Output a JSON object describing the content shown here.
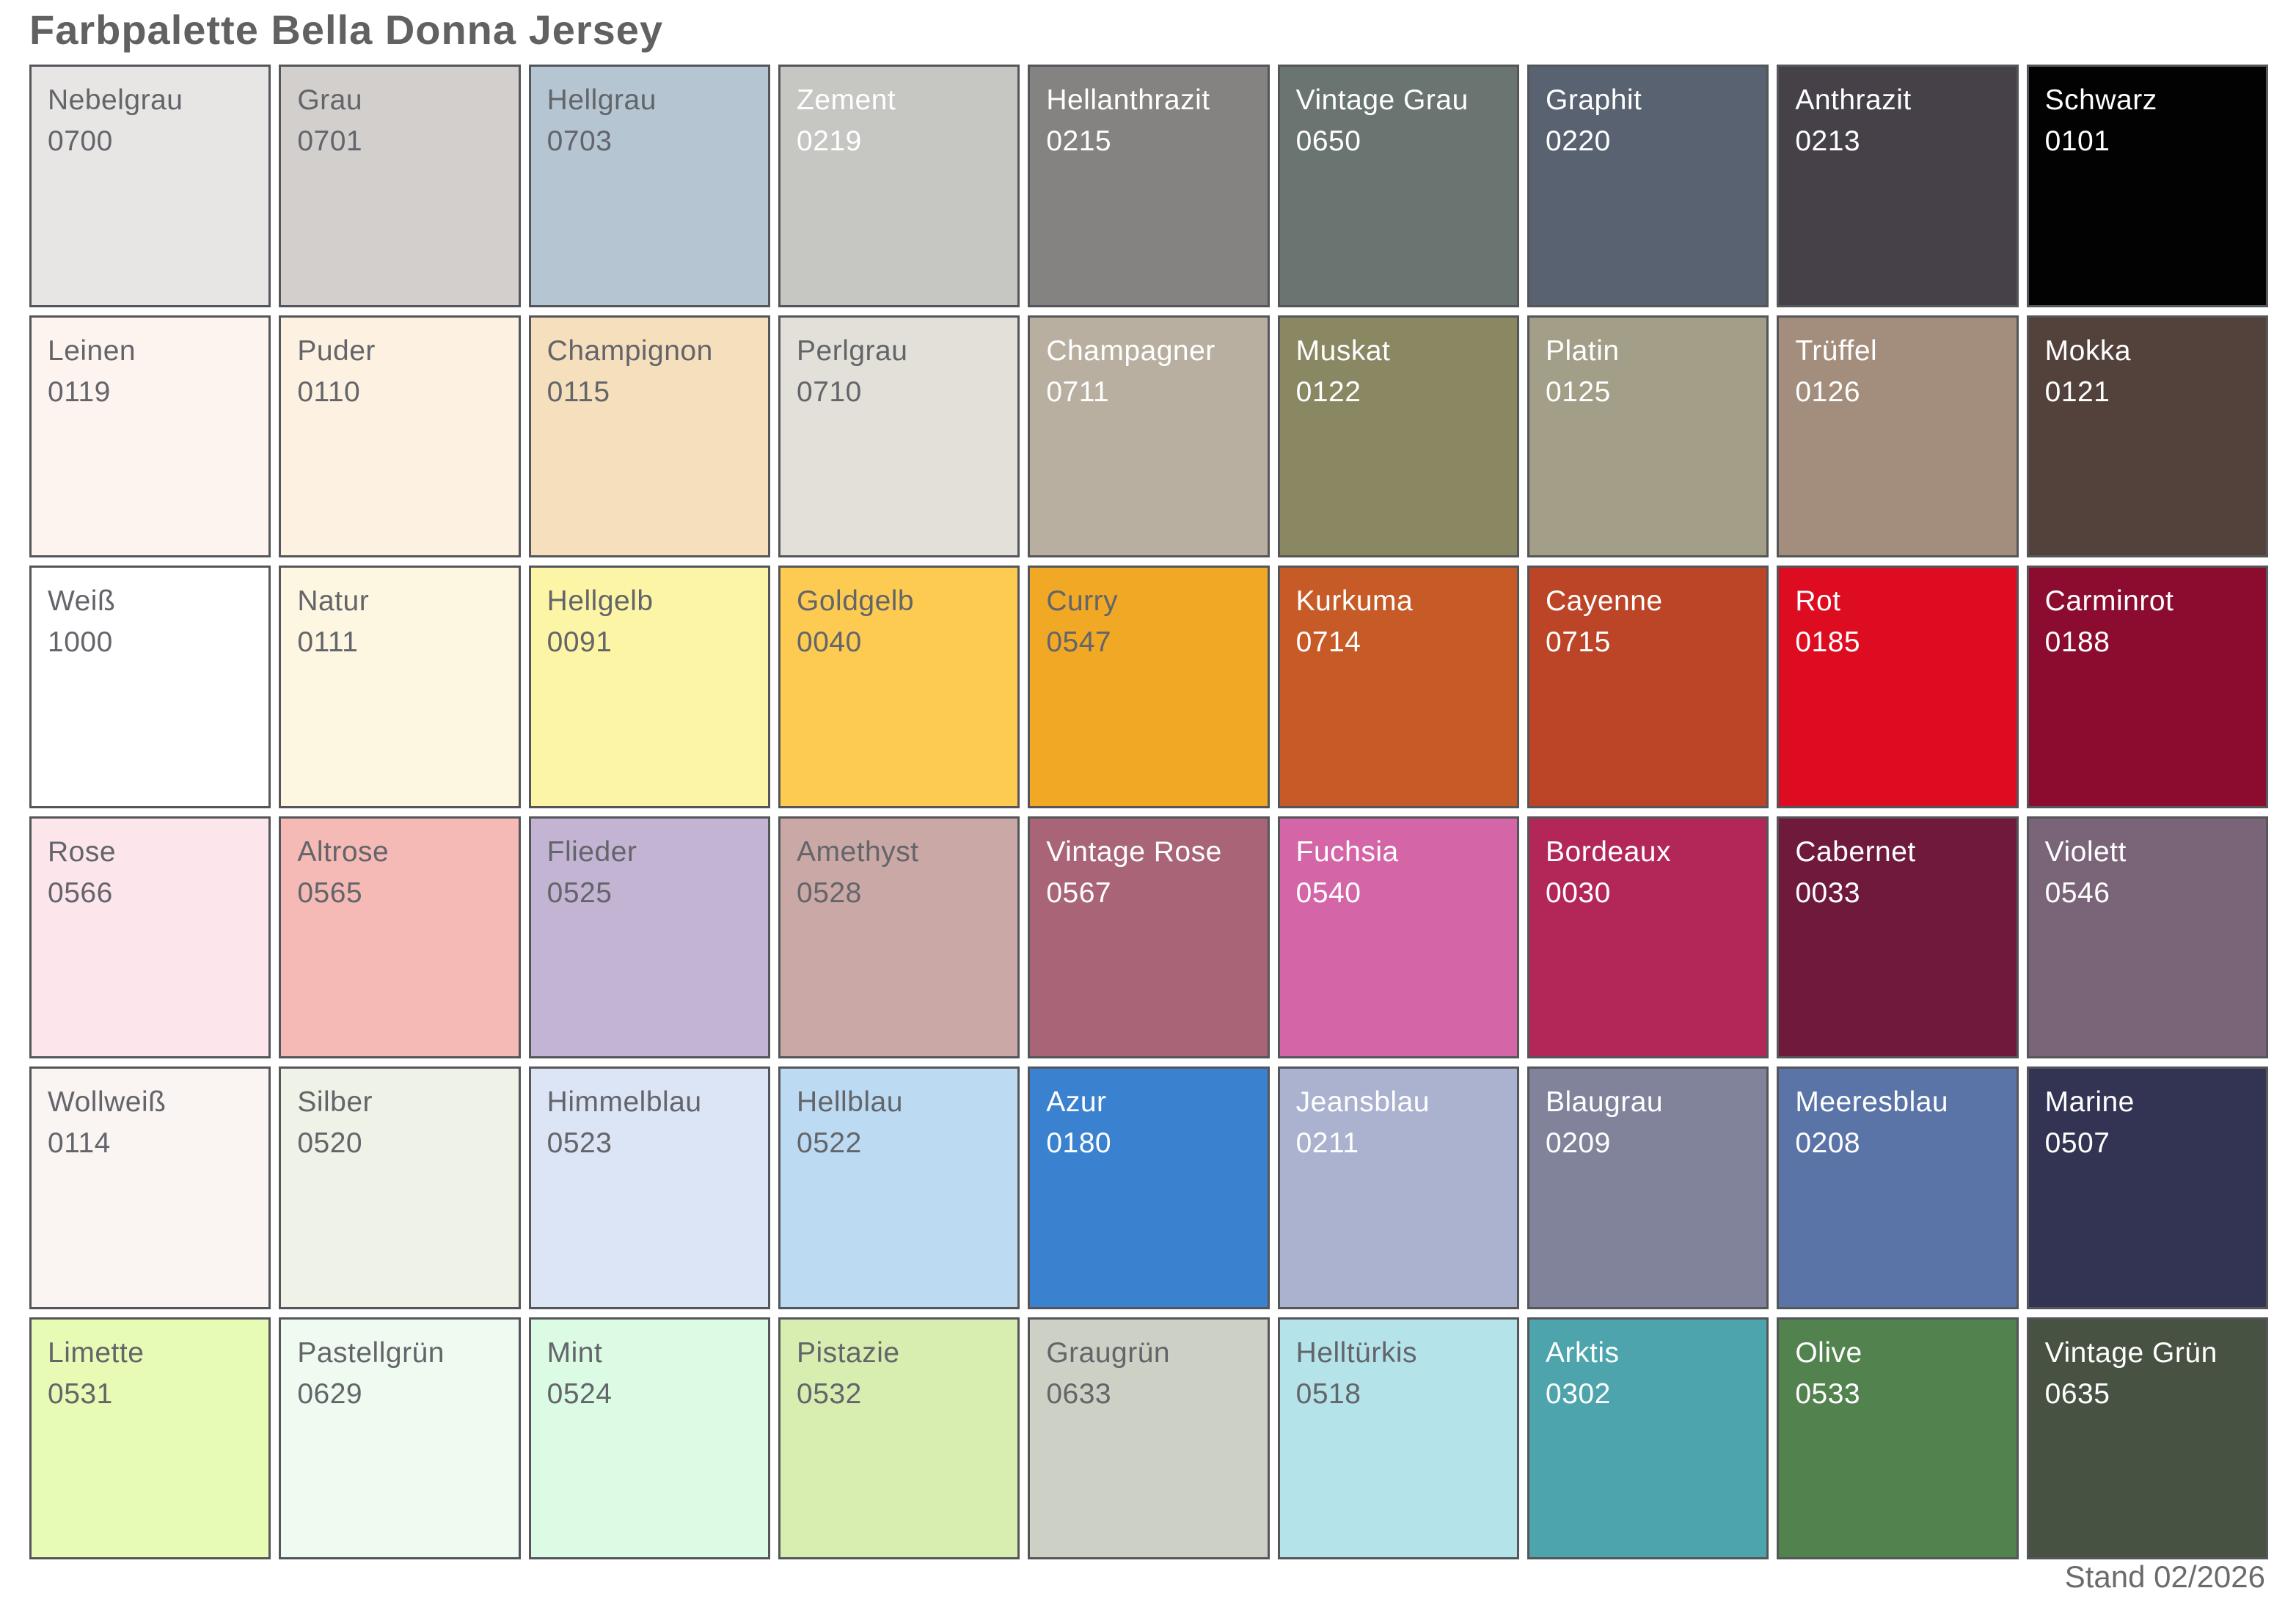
{
  "title": "Farbpalette Bella Donna Jersey",
  "footer": {
    "stand_label": "Stand 02/2026"
  },
  "palette": {
    "columns": 9,
    "rows": 6,
    "border_color": "#54565a",
    "dark_text_color": "#63656a",
    "light_text_color": "#ffffff",
    "swatches": [
      {
        "name": "Nebelgrau",
        "code": "0700",
        "hex": "#e7e6e4",
        "text": "dark"
      },
      {
        "name": "Grau",
        "code": "0701",
        "hex": "#d2cfcd",
        "text": "dark"
      },
      {
        "name": "Hellgrau",
        "code": "0703",
        "hex": "#b5c5d2",
        "text": "dark"
      },
      {
        "name": "Zement",
        "code": "0219",
        "hex": "#c6c7c3",
        "text": "light"
      },
      {
        "name": "Hellanthrazit",
        "code": "0215",
        "hex": "#858381",
        "text": "light"
      },
      {
        "name": "Vintage Grau",
        "code": "0650",
        "hex": "#6a7572",
        "text": "light"
      },
      {
        "name": "Graphit",
        "code": "0220",
        "hex": "#586270",
        "text": "light"
      },
      {
        "name": "Anthrazit",
        "code": "0213",
        "hex": "#464149",
        "text": "light"
      },
      {
        "name": "Schwarz",
        "code": "0101",
        "hex": "#020202",
        "text": "light"
      },
      {
        "name": "Leinen",
        "code": "0119",
        "hex": "#fdf3ef",
        "text": "dark"
      },
      {
        "name": "Puder",
        "code": "0110",
        "hex": "#fdf2e1",
        "text": "dark"
      },
      {
        "name": "Champignon",
        "code": "0115",
        "hex": "#f5dfbd",
        "text": "dark"
      },
      {
        "name": "Perlgrau",
        "code": "0710",
        "hex": "#e2e0d9",
        "text": "dark"
      },
      {
        "name": "Champagner",
        "code": "0711",
        "hex": "#b9afa0",
        "text": "light"
      },
      {
        "name": "Muskat",
        "code": "0122",
        "hex": "#8a8763",
        "text": "light"
      },
      {
        "name": "Platin",
        "code": "0125",
        "hex": "#a29e87",
        "text": "light"
      },
      {
        "name": "Trüffel",
        "code": "0126",
        "hex": "#a38d7c",
        "text": "light"
      },
      {
        "name": "Mokka",
        "code": "0121",
        "hex": "#53423b",
        "text": "light"
      },
      {
        "name": "Weiß",
        "code": "1000",
        "hex": "#ffffff",
        "text": "dark"
      },
      {
        "name": "Natur",
        "code": "0111",
        "hex": "#fdf6e0",
        "text": "dark"
      },
      {
        "name": "Hellgelb",
        "code": "0091",
        "hex": "#fdf5a6",
        "text": "dark"
      },
      {
        "name": "Goldgelb",
        "code": "0040",
        "hex": "#fdca52",
        "text": "dark"
      },
      {
        "name": "Curry",
        "code": "0547",
        "hex": "#f0a825",
        "text": "dark"
      },
      {
        "name": "Kurkuma",
        "code": "0714",
        "hex": "#c75b27",
        "text": "light"
      },
      {
        "name": "Cayenne",
        "code": "0715",
        "hex": "#bc4527",
        "text": "light"
      },
      {
        "name": "Rot",
        "code": "0185",
        "hex": "#dd0c20",
        "text": "light"
      },
      {
        "name": "Carminrot",
        "code": "0188",
        "hex": "#8c0c30",
        "text": "light"
      },
      {
        "name": "Rose",
        "code": "0566",
        "hex": "#fde5ec",
        "text": "dark"
      },
      {
        "name": "Altrose",
        "code": "0565",
        "hex": "#f5bab6",
        "text": "dark"
      },
      {
        "name": "Flieder",
        "code": "0525",
        "hex": "#c4b4d4",
        "text": "dark"
      },
      {
        "name": "Amethyst",
        "code": "0528",
        "hex": "#caa8a6",
        "text": "dark"
      },
      {
        "name": "Vintage Rose",
        "code": "0567",
        "hex": "#a96577",
        "text": "light"
      },
      {
        "name": "Fuchsia",
        "code": "0540",
        "hex": "#d466a8",
        "text": "light"
      },
      {
        "name": "Bordeaux",
        "code": "0030",
        "hex": "#b32758",
        "text": "light"
      },
      {
        "name": "Cabernet",
        "code": "0033",
        "hex": "#6f1a3d",
        "text": "light"
      },
      {
        "name": "Violett",
        "code": "0546",
        "hex": "#7a6478",
        "text": "light"
      },
      {
        "name": "Wollweiß",
        "code": "0114",
        "hex": "#faf4f2",
        "text": "dark"
      },
      {
        "name": "Silber",
        "code": "0520",
        "hex": "#eff2e6",
        "text": "dark"
      },
      {
        "name": "Himmelblau",
        "code": "0523",
        "hex": "#dce5f5",
        "text": "dark"
      },
      {
        "name": "Hellblau",
        "code": "0522",
        "hex": "#bcdbf2",
        "text": "dark"
      },
      {
        "name": "Azur",
        "code": "0180",
        "hex": "#3a82cf",
        "text": "light"
      },
      {
        "name": "Jeansblau",
        "code": "0211",
        "hex": "#abb2cf",
        "text": "light"
      },
      {
        "name": "Blaugrau",
        "code": "0209",
        "hex": "#80839a",
        "text": "light"
      },
      {
        "name": "Meeresblau",
        "code": "0208",
        "hex": "#5a74a8",
        "text": "light"
      },
      {
        "name": "Marine",
        "code": "0507",
        "hex": "#333353",
        "text": "light"
      },
      {
        "name": "Limette",
        "code": "0531",
        "hex": "#e7fbb4",
        "text": "dark"
      },
      {
        "name": "Pastellgrün",
        "code": "0629",
        "hex": "#effbf0",
        "text": "dark"
      },
      {
        "name": "Mint",
        "code": "0524",
        "hex": "#dcfbe4",
        "text": "dark"
      },
      {
        "name": "Pistazie",
        "code": "0532",
        "hex": "#d8edb0",
        "text": "dark"
      },
      {
        "name": "Graugrün",
        "code": "0633",
        "hex": "#cdd0c4",
        "text": "dark"
      },
      {
        "name": "Helltürkis",
        "code": "0518",
        "hex": "#b5e3ea",
        "text": "dark"
      },
      {
        "name": "Arktis",
        "code": "0302",
        "hex": "#4da4ac",
        "text": "light"
      },
      {
        "name": "Olive",
        "code": "0533",
        "hex": "#52824e",
        "text": "light"
      },
      {
        "name": "Vintage Grün",
        "code": "0635",
        "hex": "#485243",
        "text": "light"
      }
    ]
  }
}
